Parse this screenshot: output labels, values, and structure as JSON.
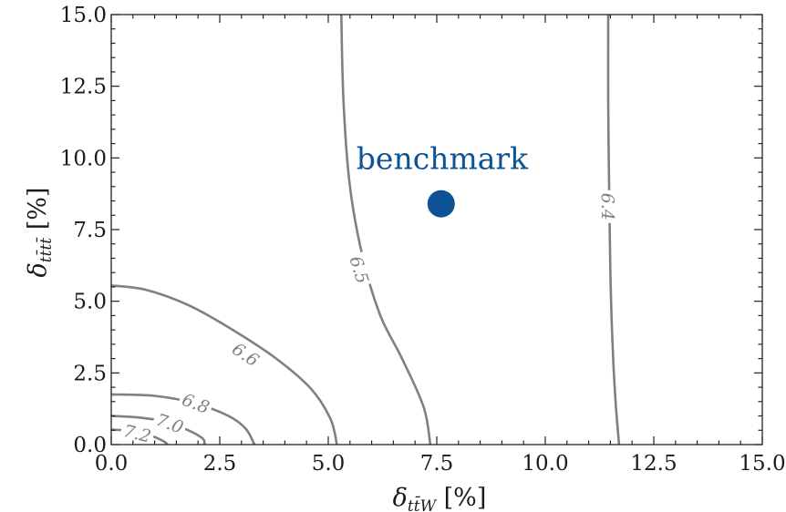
{
  "chart_data": {
    "type": "contour",
    "xlabel": "δ_{tt̄W} [%]",
    "ylabel": "δ_{tt̄tt̄} [%]",
    "xlim": [
      0,
      15
    ],
    "ylim": [
      0,
      15
    ],
    "x_ticks": [
      "0.0",
      "2.5",
      "5.0",
      "7.5",
      "10.0",
      "12.5",
      "15.0"
    ],
    "y_ticks": [
      "0.0",
      "2.5",
      "5.0",
      "7.5",
      "10.0",
      "12.5",
      "15.0"
    ],
    "x_tick_values": [
      0,
      2.5,
      5,
      7.5,
      10,
      12.5,
      15
    ],
    "y_tick_values": [
      0,
      2.5,
      5,
      7.5,
      10,
      12.5,
      15
    ],
    "contours": [
      {
        "level": "6.4",
        "points": [
          [
            11.45,
            15.0
          ],
          [
            11.45,
            12.0
          ],
          [
            11.47,
            9.0
          ],
          [
            11.5,
            6.0
          ],
          [
            11.55,
            3.5
          ],
          [
            11.62,
            1.5
          ],
          [
            11.7,
            0.0
          ]
        ],
        "label_at": [
          11.45,
          8.3
        ]
      },
      {
        "level": "6.5",
        "points": [
          [
            5.3,
            15.0
          ],
          [
            5.35,
            12.0
          ],
          [
            5.5,
            9.0
          ],
          [
            5.8,
            6.5
          ],
          [
            6.2,
            4.5
          ],
          [
            6.7,
            3.0
          ],
          [
            7.2,
            1.3
          ],
          [
            7.35,
            0.0
          ]
        ],
        "label_at": [
          5.72,
          6.1
        ]
      },
      {
        "level": "6.6",
        "points": [
          [
            0.0,
            5.55
          ],
          [
            0.8,
            5.4
          ],
          [
            1.8,
            4.85
          ],
          [
            2.8,
            4.0
          ],
          [
            3.8,
            3.0
          ],
          [
            4.6,
            1.95
          ],
          [
            5.05,
            0.9
          ],
          [
            5.2,
            0.0
          ]
        ],
        "label_at": [
          3.1,
          3.15
        ]
      },
      {
        "level": "6.8",
        "points": [
          [
            0.0,
            1.75
          ],
          [
            1.0,
            1.7
          ],
          [
            1.9,
            1.45
          ],
          [
            2.7,
            1.0
          ],
          [
            3.1,
            0.55
          ],
          [
            3.3,
            0.0
          ]
        ],
        "label_at": [
          1.95,
          1.45
        ]
      },
      {
        "level": "7.0",
        "points": [
          [
            0.0,
            1.0
          ],
          [
            0.6,
            0.95
          ],
          [
            1.2,
            0.82
          ],
          [
            1.7,
            0.55
          ],
          [
            2.1,
            0.22
          ],
          [
            2.15,
            0.0
          ]
        ],
        "label_at": [
          1.35,
          0.75
        ]
      },
      {
        "level": "7.2",
        "points": [
          [
            0.0,
            0.52
          ],
          [
            0.5,
            0.47
          ],
          [
            0.9,
            0.32
          ],
          [
            1.2,
            0.12
          ],
          [
            1.3,
            0.0
          ]
        ],
        "label_at": [
          0.6,
          0.4
        ]
      }
    ],
    "points": [
      {
        "label": "benchmark",
        "x": 7.6,
        "y": 8.4,
        "color": "#0b5394"
      }
    ],
    "colors": {
      "contour": "#808080",
      "benchmark": "#0b5394",
      "axis": "#222222"
    }
  }
}
